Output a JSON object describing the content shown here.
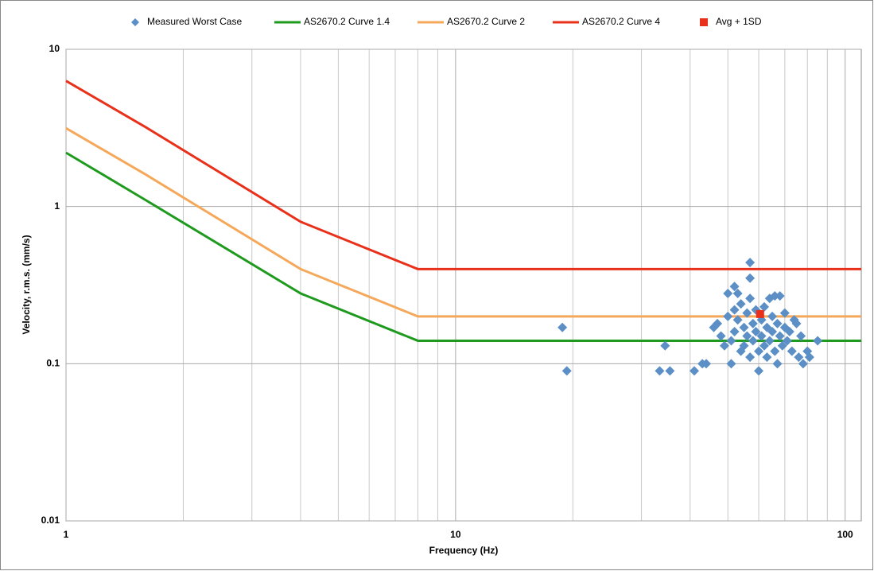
{
  "chart_data": {
    "type": "scatter-line",
    "xlabel": "Frequency (Hz)",
    "ylabel": "Velocity, r.m.s. (mm/s)",
    "xlog": true,
    "ylog": true,
    "grid": true,
    "minor_grid": true,
    "legend": "top",
    "xlim": [
      1,
      110
    ],
    "ylim": [
      0.01,
      10
    ],
    "xticks": [
      1,
      10,
      100
    ],
    "yticks": [
      0.01,
      0.1,
      1,
      10
    ],
    "series": [
      {
        "name": "Measured Worst Case",
        "color": "#5b8fc6",
        "type": "scatter",
        "marker": "diamond",
        "x": [
          18.8,
          19.3,
          33.4,
          34.5,
          35.5,
          41,
          43,
          44,
          46,
          47,
          48,
          49,
          50,
          50,
          51,
          51,
          52,
          52,
          52,
          53,
          53,
          54,
          54,
          55,
          55,
          56,
          56,
          57,
          57,
          57,
          57,
          58,
          58,
          59,
          59,
          60,
          60,
          61,
          61,
          62,
          62,
          63,
          63,
          64,
          64,
          65,
          65,
          66,
          66,
          67,
          67,
          68,
          68,
          69,
          70,
          70,
          71,
          72,
          73,
          74,
          75,
          76,
          77,
          78,
          80,
          81,
          85
        ],
        "values": [
          0.17,
          0.09,
          0.09,
          0.13,
          0.09,
          0.09,
          0.1,
          0.1,
          0.17,
          0.18,
          0.15,
          0.13,
          0.28,
          0.2,
          0.14,
          0.1,
          0.31,
          0.22,
          0.16,
          0.28,
          0.19,
          0.12,
          0.24,
          0.17,
          0.13,
          0.21,
          0.15,
          0.44,
          0.35,
          0.26,
          0.11,
          0.18,
          0.14,
          0.22,
          0.16,
          0.12,
          0.09,
          0.19,
          0.15,
          0.13,
          0.23,
          0.17,
          0.11,
          0.26,
          0.14,
          0.2,
          0.16,
          0.27,
          0.12,
          0.18,
          0.1,
          0.15,
          0.27,
          0.13,
          0.21,
          0.17,
          0.14,
          0.16,
          0.12,
          0.19,
          0.18,
          0.11,
          0.15,
          0.1,
          0.12,
          0.11,
          0.14
        ]
      },
      {
        "name": "AS2670.2 Curve 1.4",
        "color": "#1e9a1e",
        "type": "line",
        "x": [
          1,
          1.6,
          4,
          8,
          110
        ],
        "values": [
          2.2,
          1.1,
          0.28,
          0.14,
          0.14
        ]
      },
      {
        "name": "AS2670.2 Curve 2",
        "color": "#f5a85a",
        "type": "line",
        "x": [
          1,
          1.6,
          4,
          8,
          110
        ],
        "values": [
          3.15,
          1.6,
          0.4,
          0.2,
          0.2
        ]
      },
      {
        "name": "AS2670.2 Curve 4",
        "color": "#e8301a",
        "type": "line",
        "x": [
          1,
          1.6,
          4,
          8,
          110
        ],
        "values": [
          6.3,
          3.2,
          0.8,
          0.4,
          0.4
        ]
      },
      {
        "name": "Avg + 1SD",
        "color": "#e8301a",
        "type": "scatter",
        "marker": "square",
        "x": [
          60.5
        ],
        "values": [
          0.207
        ]
      }
    ]
  }
}
